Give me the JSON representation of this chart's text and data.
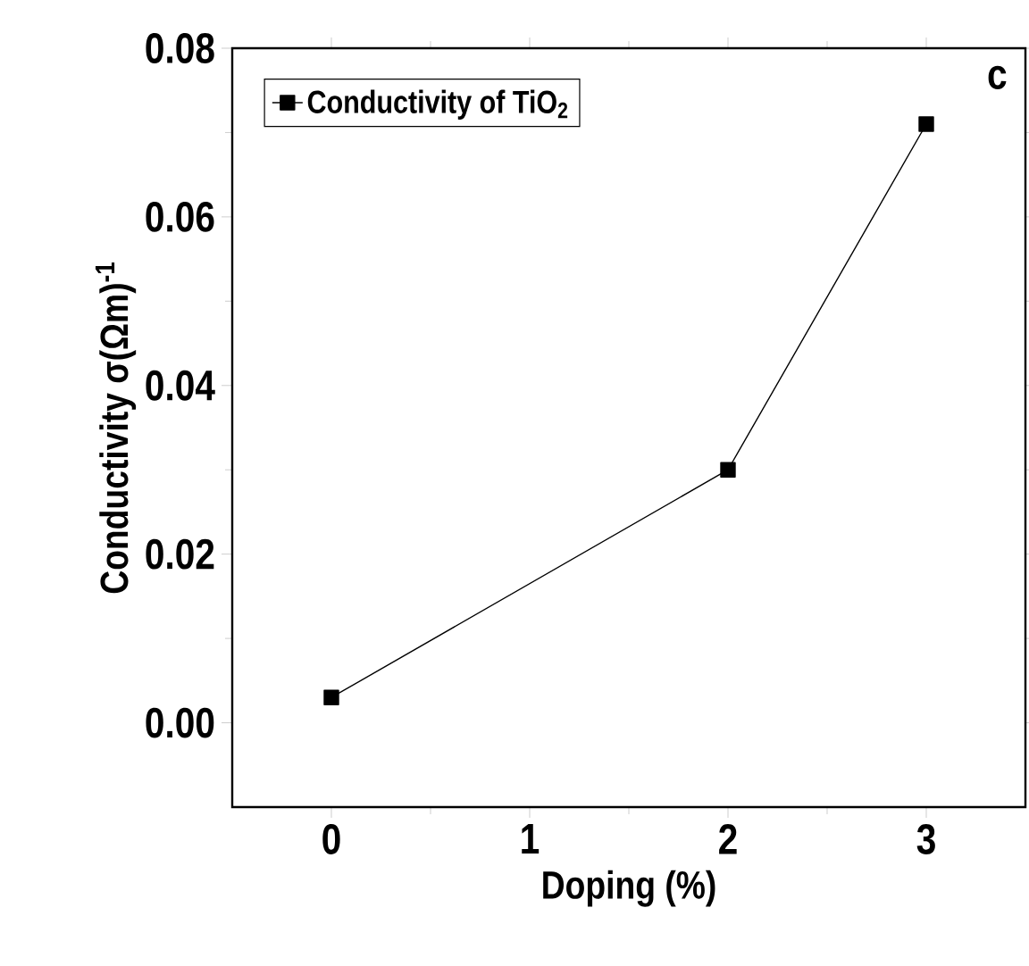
{
  "chart_data": {
    "type": "line",
    "xlabel": "Doping (%)",
    "ylabel": "Conductivity σ(Ωm)$^{-1}$",
    "annotations": [
      "c"
    ],
    "x": [
      0,
      2,
      3
    ],
    "series": [
      {
        "name": "Conductivity of TiO$_{2}$",
        "color": "#000000",
        "values": [
          0.003,
          0.03,
          0.071
        ]
      }
    ],
    "xlim": [
      -0.5,
      3.5
    ],
    "ylim": [
      -0.01,
      0.08
    ],
    "xticks": [
      0,
      1,
      2,
      3
    ],
    "yticks": [
      {
        "value": 0,
        "label": "0.00"
      },
      {
        "value": 0.02,
        "label": "0.02"
      },
      {
        "value": 0.04,
        "label": "0.04"
      },
      {
        "value": 0.06,
        "label": "0.06"
      },
      {
        "value": 0.08,
        "label": "0.08"
      }
    ],
    "legend": "top left",
    "marker": "square",
    "line_style": "solid"
  }
}
